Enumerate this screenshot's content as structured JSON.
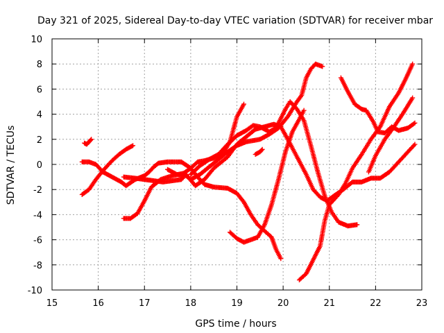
{
  "chart_data": {
    "type": "scatter",
    "title": "Day 321 of 2025, Sidereal Day-to-day VTEC variation (SDTVAR) for receiver mbar",
    "xlabel": "GPS time / hours",
    "ylabel": "SDTVAR / TECUs",
    "xlim": [
      15,
      23
    ],
    "ylim": [
      -10,
      10
    ],
    "xticks": [
      "15",
      "16",
      "17",
      "18",
      "19",
      "20",
      "21",
      "22",
      "23"
    ],
    "yticks": [
      "-10",
      "-8",
      "-6",
      "-4",
      "-2",
      "0",
      "2",
      "4",
      "6",
      "8",
      "10"
    ],
    "grid": true,
    "marker": "+",
    "color": "#ff0000",
    "series": [
      {
        "points": [
          [
            15.7,
            1.7
          ],
          [
            15.75,
            1.6
          ],
          [
            15.8,
            1.8
          ],
          [
            15.85,
            2.0
          ]
        ]
      },
      {
        "points": [
          [
            15.65,
            0.2
          ],
          [
            15.8,
            0.2
          ],
          [
            15.95,
            0.0
          ],
          [
            16.1,
            -0.6
          ],
          [
            16.3,
            -1.0
          ],
          [
            16.5,
            -1.4
          ],
          [
            16.6,
            -1.7
          ],
          [
            16.8,
            -1.2
          ],
          [
            17.0,
            -0.9
          ],
          [
            17.1,
            -0.6
          ],
          [
            17.2,
            -0.2
          ],
          [
            17.3,
            0.1
          ],
          [
            17.5,
            0.2
          ],
          [
            17.8,
            0.2
          ],
          [
            18.0,
            -0.3
          ],
          [
            18.15,
            -1.0
          ],
          [
            18.3,
            -1.6
          ],
          [
            18.5,
            -1.8
          ],
          [
            18.8,
            -1.9
          ],
          [
            19.0,
            -2.3
          ],
          [
            19.15,
            -3.0
          ],
          [
            19.3,
            -4.0
          ],
          [
            19.45,
            -4.8
          ],
          [
            19.6,
            -5.3
          ],
          [
            19.75,
            -5.8
          ],
          [
            19.85,
            -6.8
          ],
          [
            19.95,
            -7.5
          ]
        ]
      },
      {
        "points": [
          [
            15.65,
            -2.4
          ],
          [
            15.8,
            -2.0
          ],
          [
            15.95,
            -1.2
          ],
          [
            16.1,
            -0.5
          ],
          [
            16.3,
            0.3
          ],
          [
            16.45,
            0.8
          ],
          [
            16.6,
            1.2
          ],
          [
            16.75,
            1.5
          ]
        ]
      },
      {
        "points": [
          [
            16.55,
            -4.3
          ],
          [
            16.7,
            -4.3
          ],
          [
            16.85,
            -3.9
          ],
          [
            17.0,
            -2.9
          ],
          [
            17.15,
            -1.8
          ],
          [
            17.35,
            -1.2
          ],
          [
            17.6,
            -0.9
          ],
          [
            17.85,
            -0.7
          ],
          [
            18.0,
            -0.3
          ],
          [
            18.15,
            0.2
          ],
          [
            18.3,
            0.3
          ],
          [
            18.5,
            0.5
          ],
          [
            18.7,
            0.9
          ],
          [
            18.85,
            1.8
          ],
          [
            19.0,
            3.8
          ],
          [
            19.15,
            4.8
          ]
        ]
      },
      {
        "points": [
          [
            16.55,
            -1.0
          ],
          [
            16.8,
            -1.1
          ],
          [
            17.0,
            -1.2
          ],
          [
            17.2,
            -1.3
          ],
          [
            17.4,
            -1.4
          ],
          [
            17.6,
            -1.3
          ],
          [
            17.8,
            -1.2
          ],
          [
            17.9,
            -0.8
          ],
          [
            18.1,
            -1.7
          ],
          [
            18.3,
            -1.2
          ],
          [
            18.5,
            -0.3
          ],
          [
            18.8,
            0.6
          ],
          [
            19.0,
            1.6
          ],
          [
            19.2,
            2.2
          ],
          [
            19.4,
            2.8
          ],
          [
            19.6,
            3.0
          ],
          [
            19.8,
            3.2
          ],
          [
            19.95,
            3.0
          ],
          [
            20.1,
            2.0
          ],
          [
            20.3,
            0.6
          ],
          [
            20.5,
            -0.8
          ],
          [
            20.65,
            -2.0
          ],
          [
            20.8,
            -2.6
          ],
          [
            20.95,
            -2.9
          ],
          [
            21.1,
            -2.5
          ],
          [
            21.3,
            -2.0
          ],
          [
            21.5,
            -1.4
          ],
          [
            21.7,
            -1.4
          ],
          [
            21.9,
            -1.1
          ],
          [
            22.1,
            -1.1
          ],
          [
            22.3,
            -0.6
          ],
          [
            22.5,
            0.2
          ],
          [
            22.7,
            1.0
          ],
          [
            22.85,
            1.6
          ]
        ]
      },
      {
        "points": [
          [
            17.5,
            -0.4
          ],
          [
            17.7,
            -0.8
          ],
          [
            17.9,
            -0.9
          ],
          [
            18.0,
            -1.2
          ],
          [
            18.2,
            -0.8
          ],
          [
            18.4,
            -0.2
          ],
          [
            18.6,
            0.4
          ],
          [
            18.8,
            1.0
          ],
          [
            19.0,
            1.5
          ],
          [
            19.2,
            1.8
          ],
          [
            19.5,
            2.0
          ],
          [
            19.7,
            2.4
          ],
          [
            19.9,
            2.9
          ],
          [
            20.1,
            3.8
          ],
          [
            20.3,
            5.0
          ],
          [
            20.4,
            5.5
          ],
          [
            20.5,
            6.9
          ],
          [
            20.6,
            7.6
          ],
          [
            20.7,
            8.0
          ],
          [
            20.85,
            7.8
          ]
        ]
      },
      {
        "points": [
          [
            18.0,
            -0.8
          ],
          [
            18.2,
            -0.1
          ],
          [
            18.4,
            0.4
          ],
          [
            18.6,
            0.8
          ],
          [
            18.8,
            1.6
          ],
          [
            19.0,
            2.3
          ],
          [
            19.2,
            2.7
          ],
          [
            19.35,
            3.1
          ],
          [
            19.5,
            3.0
          ],
          [
            19.7,
            2.6
          ],
          [
            19.8,
            2.8
          ],
          [
            19.9,
            3.3
          ],
          [
            20.05,
            4.4
          ],
          [
            20.15,
            5.0
          ],
          [
            20.3,
            4.4
          ],
          [
            20.45,
            3.5
          ],
          [
            20.6,
            1.5
          ],
          [
            20.75,
            -0.6
          ],
          [
            20.9,
            -2.5
          ],
          [
            21.05,
            -3.8
          ],
          [
            21.2,
            -4.6
          ],
          [
            21.4,
            -4.9
          ],
          [
            21.6,
            -4.8
          ]
        ]
      },
      {
        "points": [
          [
            18.85,
            -5.4
          ],
          [
            19.0,
            -5.9
          ],
          [
            19.15,
            -6.2
          ],
          [
            19.3,
            -6.0
          ],
          [
            19.45,
            -5.8
          ],
          [
            19.6,
            -4.8
          ],
          [
            19.75,
            -3.2
          ],
          [
            19.9,
            -1.2
          ],
          [
            20.05,
            1.0
          ],
          [
            20.2,
            2.6
          ],
          [
            20.35,
            3.6
          ],
          [
            20.45,
            4.3
          ]
        ]
      },
      {
        "points": [
          [
            19.4,
            0.8
          ],
          [
            19.5,
            1.0
          ],
          [
            19.55,
            1.2
          ]
        ]
      },
      {
        "points": [
          [
            20.35,
            -9.2
          ],
          [
            20.5,
            -8.7
          ],
          [
            20.65,
            -7.6
          ],
          [
            20.8,
            -6.5
          ],
          [
            20.9,
            -4.5
          ],
          [
            21.0,
            -3.2
          ],
          [
            21.2,
            -2.4
          ],
          [
            21.35,
            -1.5
          ],
          [
            21.5,
            -0.3
          ],
          [
            21.7,
            0.8
          ],
          [
            21.9,
            2.0
          ],
          [
            22.1,
            3.0
          ],
          [
            22.3,
            4.6
          ],
          [
            22.5,
            5.7
          ],
          [
            22.65,
            6.8
          ],
          [
            22.8,
            8.0
          ]
        ]
      },
      {
        "points": [
          [
            21.25,
            6.9
          ],
          [
            21.4,
            5.8
          ],
          [
            21.55,
            4.8
          ],
          [
            21.7,
            4.4
          ],
          [
            21.8,
            4.3
          ],
          [
            21.95,
            3.4
          ],
          [
            22.05,
            2.6
          ],
          [
            22.2,
            2.5
          ],
          [
            22.35,
            3.0
          ],
          [
            22.5,
            2.7
          ],
          [
            22.7,
            2.9
          ],
          [
            22.85,
            3.3
          ]
        ]
      },
      {
        "points": [
          [
            21.85,
            -0.6
          ],
          [
            22.0,
            0.7
          ],
          [
            22.2,
            2.0
          ],
          [
            22.4,
            3.0
          ],
          [
            22.6,
            4.1
          ],
          [
            22.8,
            5.3
          ]
        ]
      }
    ]
  }
}
